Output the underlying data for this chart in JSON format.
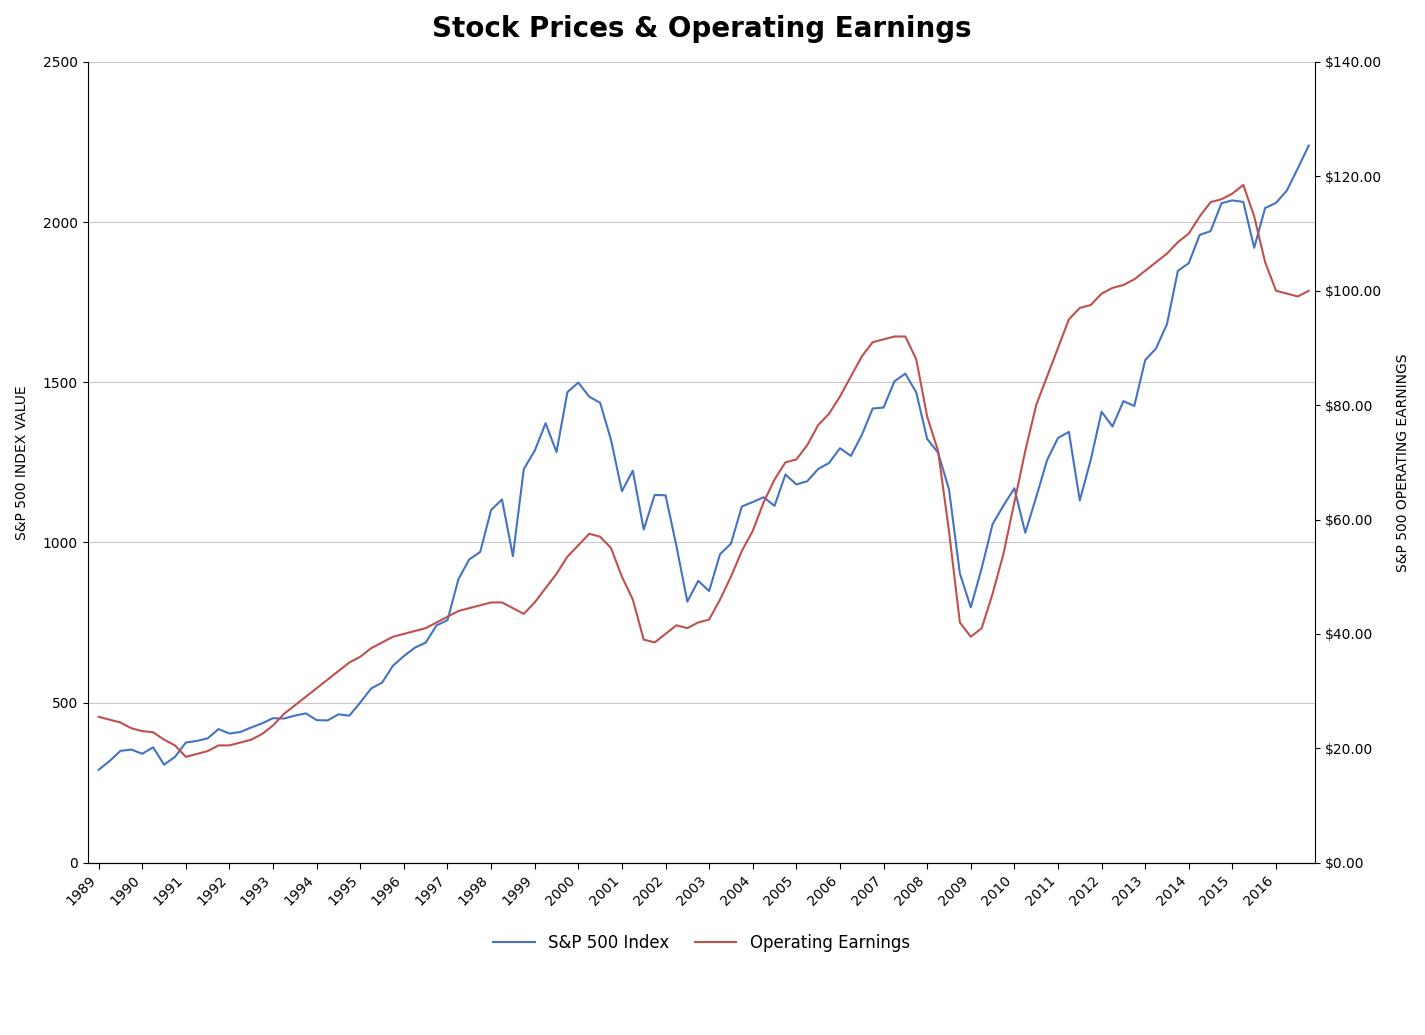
{
  "title": "Stock Prices & Operating Earnings",
  "ylabel_left": "S&P 500 INDEX VALUE",
  "ylabel_right": "S&P 500 OPERATING EARNINGS",
  "ylim_left": [
    0,
    2500
  ],
  "ylim_right": [
    0,
    140
  ],
  "yticks_left": [
    0,
    500,
    1000,
    1500,
    2000,
    2500
  ],
  "yticks_right": [
    0,
    20,
    40,
    60,
    80,
    100,
    120,
    140
  ],
  "sp500_color": "#4472c4",
  "earnings_color": "#c0504d",
  "background_color": "#ffffff",
  "grid_color": "#c8c8c8",
  "title_fontsize": 20,
  "axis_label_fontsize": 10,
  "tick_fontsize": 10,
  "legend_fontsize": 12,
  "sp500_quarterly": {
    "1989Q1": 290,
    "1989Q2": 317,
    "1989Q3": 349,
    "1989Q4": 353,
    "1990Q1": 340,
    "1990Q2": 360,
    "1990Q3": 306,
    "1990Q4": 330,
    "1991Q1": 375,
    "1991Q2": 380,
    "1991Q3": 388,
    "1991Q4": 417,
    "1992Q1": 403,
    "1992Q2": 408,
    "1992Q3": 422,
    "1992Q4": 435,
    "1993Q1": 451,
    "1993Q2": 450,
    "1993Q3": 459,
    "1993Q4": 466,
    "1994Q1": 445,
    "1994Q2": 444,
    "1994Q3": 463,
    "1994Q4": 459,
    "1995Q1": 500,
    "1995Q2": 544,
    "1995Q3": 562,
    "1995Q4": 615,
    "1996Q1": 645,
    "1996Q2": 671,
    "1996Q3": 687,
    "1996Q4": 741,
    "1997Q1": 757,
    "1997Q2": 885,
    "1997Q3": 947,
    "1997Q4": 970,
    "1998Q1": 1101,
    "1998Q2": 1134,
    "1998Q3": 957,
    "1998Q4": 1229,
    "1999Q1": 1286,
    "1999Q2": 1372,
    "1999Q3": 1282,
    "1999Q4": 1469,
    "2000Q1": 1499,
    "2000Q2": 1455,
    "2000Q3": 1436,
    "2000Q4": 1320,
    "2001Q1": 1160,
    "2001Q2": 1224,
    "2001Q3": 1040,
    "2001Q4": 1148,
    "2002Q1": 1147,
    "2002Q2": 989,
    "2002Q3": 815,
    "2002Q4": 880,
    "2003Q1": 848,
    "2003Q2": 963,
    "2003Q3": 996,
    "2003Q4": 1112,
    "2004Q1": 1126,
    "2004Q2": 1141,
    "2004Q3": 1114,
    "2004Q4": 1212,
    "2005Q1": 1181,
    "2005Q2": 1191,
    "2005Q3": 1229,
    "2005Q4": 1248,
    "2006Q1": 1294,
    "2006Q2": 1270,
    "2006Q3": 1335,
    "2006Q4": 1418,
    "2007Q1": 1421,
    "2007Q2": 1503,
    "2007Q3": 1527,
    "2007Q4": 1468,
    "2008Q1": 1323,
    "2008Q2": 1280,
    "2008Q3": 1166,
    "2008Q4": 903,
    "2009Q1": 797,
    "2009Q2": 919,
    "2009Q3": 1057,
    "2009Q4": 1115,
    "2010Q1": 1169,
    "2010Q2": 1030,
    "2010Q3": 1141,
    "2010Q4": 1257,
    "2011Q1": 1326,
    "2011Q2": 1345,
    "2011Q3": 1131,
    "2011Q4": 1257,
    "2012Q1": 1408,
    "2012Q2": 1362,
    "2012Q3": 1441,
    "2012Q4": 1426,
    "2013Q1": 1569,
    "2013Q2": 1606,
    "2013Q3": 1682,
    "2013Q4": 1848,
    "2014Q1": 1872,
    "2014Q2": 1960,
    "2014Q3": 1972,
    "2014Q4": 2059,
    "2015Q1": 2068,
    "2015Q2": 2063,
    "2015Q3": 1920,
    "2015Q4": 2044,
    "2016Q1": 2060,
    "2016Q2": 2099,
    "2016Q3": 2168,
    "2016Q4": 2239
  },
  "earnings_quarterly": {
    "1989Q1": 25.5,
    "1989Q2": 25.0,
    "1989Q3": 24.5,
    "1989Q4": 23.5,
    "1990Q1": 23.0,
    "1990Q2": 22.8,
    "1990Q3": 21.5,
    "1990Q4": 20.5,
    "1991Q1": 18.5,
    "1991Q2": 19.0,
    "1991Q3": 19.5,
    "1991Q4": 20.5,
    "1992Q1": 20.5,
    "1992Q2": 21.0,
    "1992Q3": 21.5,
    "1992Q4": 22.5,
    "1993Q1": 24.0,
    "1993Q2": 26.0,
    "1993Q3": 27.5,
    "1993Q4": 29.0,
    "1994Q1": 30.5,
    "1994Q2": 32.0,
    "1994Q3": 33.5,
    "1994Q4": 35.0,
    "1995Q1": 36.0,
    "1995Q2": 37.5,
    "1995Q3": 38.5,
    "1995Q4": 39.5,
    "1996Q1": 40.0,
    "1996Q2": 40.5,
    "1996Q3": 41.0,
    "1996Q4": 42.0,
    "1997Q1": 43.0,
    "1997Q2": 44.0,
    "1997Q3": 44.5,
    "1997Q4": 45.0,
    "1998Q1": 45.5,
    "1998Q2": 45.5,
    "1998Q3": 44.5,
    "1998Q4": 43.5,
    "1999Q1": 45.5,
    "1999Q2": 48.0,
    "1999Q3": 50.5,
    "1999Q4": 53.5,
    "2000Q1": 55.5,
    "2000Q2": 57.5,
    "2000Q3": 57.0,
    "2000Q4": 55.0,
    "2001Q1": 50.0,
    "2001Q2": 46.0,
    "2001Q3": 39.0,
    "2001Q4": 38.5,
    "2002Q1": 40.0,
    "2002Q2": 41.5,
    "2002Q3": 41.0,
    "2002Q4": 42.0,
    "2003Q1": 42.5,
    "2003Q2": 46.0,
    "2003Q3": 50.0,
    "2003Q4": 54.5,
    "2004Q1": 58.0,
    "2004Q2": 63.0,
    "2004Q3": 67.0,
    "2004Q4": 70.0,
    "2005Q1": 70.5,
    "2005Q2": 73.0,
    "2005Q3": 76.5,
    "2005Q4": 78.5,
    "2006Q1": 81.5,
    "2006Q2": 85.0,
    "2006Q3": 88.5,
    "2006Q4": 91.0,
    "2007Q1": 91.5,
    "2007Q2": 92.0,
    "2007Q3": 92.0,
    "2007Q4": 88.0,
    "2008Q1": 78.0,
    "2008Q2": 72.0,
    "2008Q3": 58.0,
    "2008Q4": 42.0,
    "2009Q1": 39.5,
    "2009Q2": 41.0,
    "2009Q3": 47.0,
    "2009Q4": 54.0,
    "2010Q1": 63.0,
    "2010Q2": 72.0,
    "2010Q3": 80.0,
    "2010Q4": 85.0,
    "2011Q1": 90.0,
    "2011Q2": 95.0,
    "2011Q3": 97.0,
    "2011Q4": 97.5,
    "2012Q1": 99.5,
    "2012Q2": 100.5,
    "2012Q3": 101.0,
    "2012Q4": 102.0,
    "2013Q1": 103.5,
    "2013Q2": 105.0,
    "2013Q3": 106.5,
    "2013Q4": 108.5,
    "2014Q1": 110.0,
    "2014Q2": 113.0,
    "2014Q3": 115.5,
    "2014Q4": 116.0,
    "2015Q1": 117.0,
    "2015Q2": 118.5,
    "2015Q3": 113.0,
    "2015Q4": 105.0,
    "2016Q1": 100.0,
    "2016Q2": 99.5,
    "2016Q3": 99.0,
    "2016Q4": 100.0
  }
}
